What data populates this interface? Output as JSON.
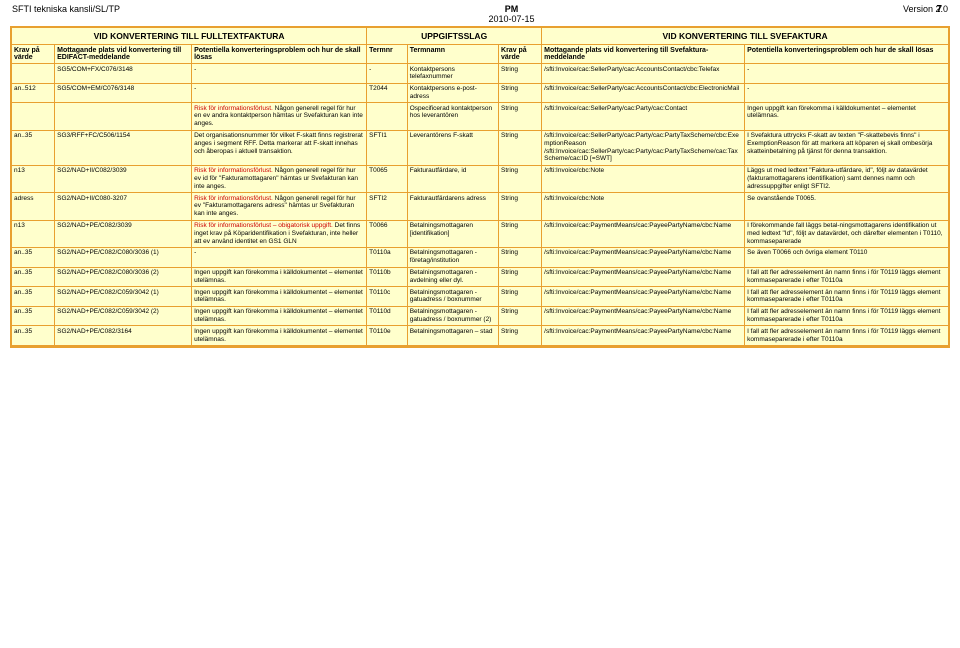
{
  "header": {
    "left": "SFTI tekniska kansli/SL/TP",
    "centerTop": "PM",
    "centerDate": "2010-07-15",
    "right": "Version 2.0",
    "pageNum": "7"
  },
  "layout": {
    "colWidths": [
      "34fr",
      "108fr",
      "138fr",
      "32fr",
      "72fr",
      "34fr",
      "160fr",
      "160fr"
    ],
    "sectionSpans": [
      3,
      3,
      2
    ],
    "borderColor": "#e8a030",
    "bg": "#ffffcc",
    "riskColor": "#cc0000"
  },
  "sections": [
    "VID KONVERTERING TILL FULLTEXTFAKTURA",
    "UPPGIFTSSLAG",
    "VID KONVERTERING TILL SVEFAKTURA"
  ],
  "columns": [
    "Krav på värde",
    "Mottagande plats vid konvertering till EDIFACT-meddelande",
    "Potentiella konverteringsproblem och hur de skall lösas",
    "Termnr",
    "Termnamn",
    "Krav på värde",
    "Mottagande plats vid konvertering till Svefaktura-meddelande",
    "Potentiella konverteringsproblem och hur de skall lösas"
  ],
  "rows": [
    {
      "c": [
        "",
        "SG5/COM+FX/C076/3148",
        "-",
        "-",
        "Kontaktpersons telefaxnummer",
        "String",
        "/sfti:Invoice/cac:SellerParty/cac:AccountsContact/cbc:Telefax",
        "-"
      ]
    },
    {
      "c": [
        "an..512",
        "SG5/COM+EM/C076/3148",
        "-",
        "T2044",
        "Kontaktpersons e-post-adress",
        "String",
        "/sfti:Invoice/cac:SellerParty/cac:AccountsContact/cbc:ElectronicMail",
        "-"
      ]
    },
    {
      "c": [
        "",
        "",
        "Risk för informationsförlust. Någon generell regel för hur en ev andra kontaktperson hämtas ur Svefakturan kan inte anges.",
        "",
        "Ospecificerad kontaktperson hos leverantören",
        "String",
        "/sfti:Invoice/cac:SellerParty/cac:Party/cac:Contact",
        "Ingen uppgift kan förekomma i källdokumentet – elementet utelämnas."
      ],
      "riskIdx": [
        2
      ]
    },
    {
      "c": [
        "an..35",
        "SG3/RFF+FC/C506/1154",
        "Det organisationsnummer för vilket F-skatt finns registrerat anges i segment RFF. Detta markerar att F-skatt innehas och åberopas i aktuell transaktion.",
        "SFTI1",
        "Leverantörens F-skatt",
        "String",
        "/sfti:Invoice/cac:SellerParty/cac:Party/cac:PartyTaxScheme/cbc:ExemptionReason\n/sfti:Invoice/cac:SellerParty/cac:Party/cac:PartyTaxScheme/cac:TaxScheme/cac:ID [=SWT]",
        "I Svefaktura uttrycks F-skatt av texten \"F-skattebevis finns\" i ExemptionReason för att markera att köparen ej skall ombesörja skatteinbetalning  på tjänst för denna transaktion."
      ]
    },
    {
      "c": [
        "n13",
        "SG2/NAD+II/C082/3039",
        "Risk för informationsförlust. Någon generell regel för hur ev id för \"Fakturamottagaren\" hämtas ur Svefakturan kan inte anges.",
        "T0065",
        "Fakturautfärdare, id",
        "String",
        "/sfti:Invoice/cbc:Note",
        "Läggs ut med ledtext \"Faktura-utfärdare, id\", följt av datavärdet (fakturamottagarens identifikation) samt dennes namn och adressuppgifter enligt SFTI2."
      ],
      "riskIdx": [
        2
      ]
    },
    {
      "c": [
        "adress",
        "SG2/NAD+II/C080-3207",
        "Risk för informationsförlust. Någon generell regel för hur ev \"Fakturamottagarens adress\" hämtas ur Svefakturan kan inte anges.",
        "SFTI2",
        "Fakturautfärdarens adress",
        "String",
        "/sfti:Invoice/cbc:Note",
        "Se ovanstående T0065."
      ],
      "riskIdx": [
        2
      ]
    },
    {
      "c": [
        "n13",
        "SG2/NAD+PE/C082/3039",
        "Risk för informationsförlust – obigatorisk uppgift. Det finns inget krav på Köparidentifikation i Svefakturan, inte heller att ev använd identitet en GS1 GLN",
        "T0066",
        "Betalningsmottagaren [identifikation]",
        "String",
        "/sfti:Invoice/cac:PaymentMeans/cac:PayeePartyName/cbc:Name",
        "I förekommande fall läggs betal-ningsmottagarens identifikation ut med ledtext \"Id\", följt av datavärdet, och därefter elementen i T0110, kommaseparerade"
      ],
      "riskIdx": [
        2
      ]
    },
    {
      "c": [
        "an..35",
        "SG2/NAD+PE/C082/C080/3036 (1)",
        "-",
        "T0110a",
        "Betalningsmottagaren - företag/institution",
        "String",
        "/sfti:Invoice/cac:PaymentMeans/cac:PayeePartyName/cbc:Name",
        "Se även T0066 och övriga element T0110"
      ]
    },
    {
      "c": [
        "an..35",
        "SG2/NAD+PE/C082/C080/3036 (2)",
        "Ingen uppgift kan förekomma i källdokumentet – elementet utelämnas.",
        "T0110b",
        "Betalningsmottagaren - avdelning eller dyl.",
        "String",
        "/sfti:Invoice/cac:PaymentMeans/cac:PayeePartyName/cbc:Name",
        "I fall att fler adresselement än namn finns i för T0119 läggs element kommaseparerade i efter T0110a"
      ]
    },
    {
      "c": [
        "an..35",
        "SG2/NAD+PE/C082/C059/3042 (1)",
        "Ingen uppgift kan förekomma i källdokumentet – elementet utelämnas.",
        "T0110c",
        "Betalningsmottagaren - gatuadress / boxnummer",
        "String",
        "/sfti:Invoice/cac:PaymentMeans/cac:PayeePartyName/cbc:Name",
        "I fall att fler adresselement än namn finns i för T0119 läggs element kommaseparerade i efter T0110a"
      ]
    },
    {
      "c": [
        "an..35",
        "SG2/NAD+PE/C082/C059/3042 (2)",
        "Ingen uppgift kan förekomma i källdokumentet – elementet utelämnas.",
        "T0110d",
        "Betalningsmottagaren - gatuadress / boxnummer (2)",
        "String",
        "/sfti:Invoice/cac:PaymentMeans/cac:PayeePartyName/cbc:Name",
        "I fall att fler adresselement än namn finns i för T0119 läggs element kommaseparerade i efter T0110a"
      ]
    },
    {
      "c": [
        "an..35",
        "SG2/NAD+PE/C082/3164",
        "Ingen uppgift kan förekomma i källdokumentet – elementet utelämnas.",
        "T0110e",
        "Betalningsmottagaren – stad",
        "String",
        "/sfti:Invoice/cac:PaymentMeans/cac:PayeePartyName/cbc:Name",
        "I fall att fler adresselement än namn finns i för T0119 läggs element kommaseparerade i efter T0110a"
      ]
    }
  ]
}
